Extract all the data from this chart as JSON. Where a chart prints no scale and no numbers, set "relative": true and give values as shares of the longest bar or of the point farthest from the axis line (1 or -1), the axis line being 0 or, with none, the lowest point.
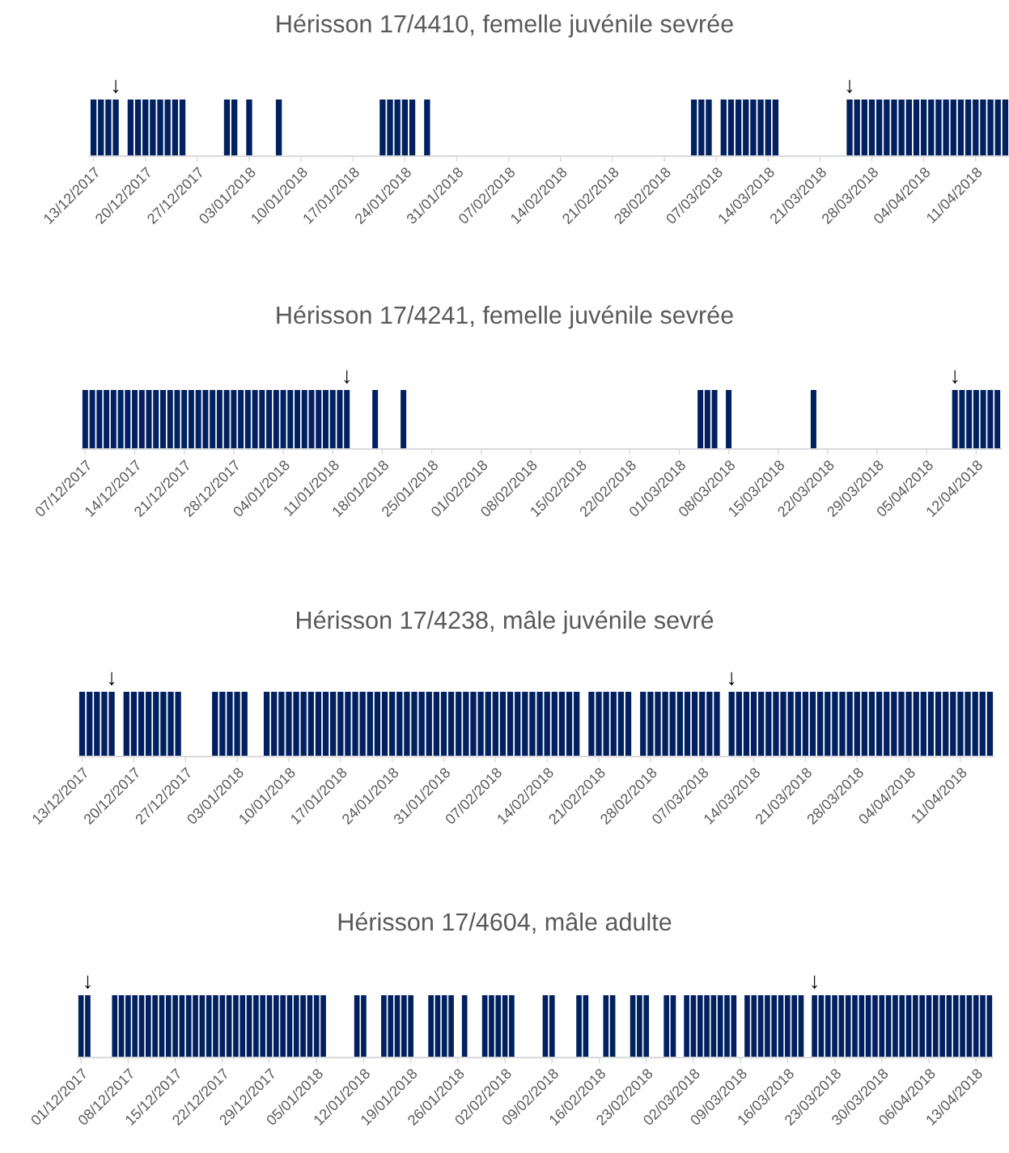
{
  "chart_data": [
    {
      "type": "bar",
      "title": "Hérisson 17/4410, femelle juvénile sevrée",
      "relative": true,
      "color": "#002060",
      "x": [
        "2017-12-13",
        "2017-12-14",
        "2017-12-15",
        "2017-12-16",
        "2017-12-18",
        "2017-12-19",
        "2017-12-20",
        "2017-12-21",
        "2017-12-22",
        "2017-12-23",
        "2017-12-24",
        "2017-12-25",
        "2017-12-31",
        "2018-01-01",
        "2018-01-03",
        "2018-01-07",
        "2018-01-21",
        "2018-01-22",
        "2018-01-23",
        "2018-01-24",
        "2018-01-25",
        "2018-01-27",
        "2018-03-04",
        "2018-03-05",
        "2018-03-06",
        "2018-03-08",
        "2018-03-09",
        "2018-03-10",
        "2018-03-11",
        "2018-03-12",
        "2018-03-13",
        "2018-03-14",
        "2018-03-15",
        "2018-03-25",
        "2018-03-26",
        "2018-03-27",
        "2018-03-28",
        "2018-03-29",
        "2018-03-30",
        "2018-03-31",
        "2018-04-01",
        "2018-04-02",
        "2018-04-03",
        "2018-04-04",
        "2018-04-05",
        "2018-04-06",
        "2018-04-07",
        "2018-04-08",
        "2018-04-09",
        "2018-04-10",
        "2018-04-11",
        "2018-04-12",
        "2018-04-13",
        "2018-04-14",
        "2018-04-15"
      ],
      "values": [
        1,
        1,
        1,
        1,
        1,
        1,
        1,
        1,
        1,
        1,
        1,
        1,
        1,
        1,
        1,
        1,
        1,
        1,
        1,
        1,
        1,
        1,
        1,
        1,
        1,
        1,
        1,
        1,
        1,
        1,
        1,
        1,
        1,
        1,
        1,
        1,
        1,
        1,
        1,
        1,
        1,
        1,
        1,
        1,
        1,
        1,
        1,
        1,
        1,
        1,
        1,
        1,
        1,
        1,
        1
      ],
      "xlim": [
        "2017-12-12T12:00",
        "2018-04-15T12:00"
      ],
      "xticks": [
        {
          "value": "2017-12-13",
          "label": "13/12/2017"
        },
        {
          "value": "2017-12-20",
          "label": "20/12/2017"
        },
        {
          "value": "2017-12-27",
          "label": "27/12/2017"
        },
        {
          "value": "2018-01-03",
          "label": "03/01/2018"
        },
        {
          "value": "2018-01-10",
          "label": "10/01/2018"
        },
        {
          "value": "2018-01-17",
          "label": "17/01/2018"
        },
        {
          "value": "2018-01-24",
          "label": "24/01/2018"
        },
        {
          "value": "2018-01-31",
          "label": "31/01/2018"
        },
        {
          "value": "2018-02-07",
          "label": "07/02/2018"
        },
        {
          "value": "2018-02-14",
          "label": "14/02/2018"
        },
        {
          "value": "2018-02-21",
          "label": "21/02/2018"
        },
        {
          "value": "2018-02-28",
          "label": "28/02/2018"
        },
        {
          "value": "2018-03-07",
          "label": "07/03/2018"
        },
        {
          "value": "2018-03-14",
          "label": "14/03/2018"
        },
        {
          "value": "2018-03-21",
          "label": "21/03/2018"
        },
        {
          "value": "2018-03-28",
          "label": "28/03/2018"
        },
        {
          "value": "2018-04-04",
          "label": "04/04/2018"
        },
        {
          "value": "2018-04-11",
          "label": "11/04/2018"
        }
      ],
      "annotations": [
        {
          "text": "↓",
          "x": "2017-12-16",
          "y": 1
        },
        {
          "text": "↓",
          "x": "2018-03-25",
          "y": 1
        }
      ]
    },
    {
      "type": "bar",
      "title": "Hérisson 17/4241, femelle juvénile sevrée",
      "relative": true,
      "color": "#002060",
      "x": [
        "2017-12-07",
        "2017-12-08",
        "2017-12-09",
        "2017-12-10",
        "2017-12-11",
        "2017-12-12",
        "2017-12-13",
        "2017-12-14",
        "2017-12-15",
        "2017-12-16",
        "2017-12-17",
        "2017-12-18",
        "2017-12-19",
        "2017-12-20",
        "2017-12-21",
        "2017-12-22",
        "2017-12-23",
        "2017-12-24",
        "2017-12-25",
        "2017-12-26",
        "2017-12-27",
        "2017-12-28",
        "2017-12-29",
        "2017-12-30",
        "2017-12-31",
        "2018-01-01",
        "2018-01-02",
        "2018-01-03",
        "2018-01-04",
        "2018-01-05",
        "2018-01-06",
        "2018-01-07",
        "2018-01-08",
        "2018-01-09",
        "2018-01-10",
        "2018-01-11",
        "2018-01-12",
        "2018-01-13",
        "2018-01-17",
        "2018-01-21",
        "2018-03-04",
        "2018-03-05",
        "2018-03-06",
        "2018-03-08",
        "2018-03-20",
        "2018-04-09",
        "2018-04-10",
        "2018-04-11",
        "2018-04-12",
        "2018-04-13",
        "2018-04-14",
        "2018-04-15"
      ],
      "values": [
        1,
        1,
        1,
        1,
        1,
        1,
        1,
        1,
        1,
        1,
        1,
        1,
        1,
        1,
        1,
        1,
        1,
        1,
        1,
        1,
        1,
        1,
        1,
        1,
        1,
        1,
        1,
        1,
        1,
        1,
        1,
        1,
        1,
        1,
        1,
        1,
        1,
        1,
        1,
        1,
        1,
        1,
        1,
        1,
        1,
        1,
        1,
        1,
        1,
        1,
        1,
        1
      ],
      "xlim": [
        "2017-12-06T12:00",
        "2018-04-15T12:00"
      ],
      "xticks": [
        {
          "value": "2017-12-07",
          "label": "07/12/2017"
        },
        {
          "value": "2017-12-14",
          "label": "14/12/2017"
        },
        {
          "value": "2017-12-21",
          "label": "21/12/2017"
        },
        {
          "value": "2017-12-28",
          "label": "28/12/2017"
        },
        {
          "value": "2018-01-04",
          "label": "04/01/2018"
        },
        {
          "value": "2018-01-11",
          "label": "11/01/2018"
        },
        {
          "value": "2018-01-18",
          "label": "18/01/2018"
        },
        {
          "value": "2018-01-25",
          "label": "25/01/2018"
        },
        {
          "value": "2018-02-01",
          "label": "01/02/2018"
        },
        {
          "value": "2018-02-08",
          "label": "08/02/2018"
        },
        {
          "value": "2018-02-15",
          "label": "15/02/2018"
        },
        {
          "value": "2018-02-22",
          "label": "22/02/2018"
        },
        {
          "value": "2018-03-01",
          "label": "01/03/2018"
        },
        {
          "value": "2018-03-08",
          "label": "08/03/2018"
        },
        {
          "value": "2018-03-15",
          "label": "15/03/2018"
        },
        {
          "value": "2018-03-22",
          "label": "22/03/2018"
        },
        {
          "value": "2018-03-29",
          "label": "29/03/2018"
        },
        {
          "value": "2018-04-05",
          "label": "05/04/2018"
        },
        {
          "value": "2018-04-12",
          "label": "12/04/2018"
        }
      ],
      "annotations": [
        {
          "text": "↓",
          "x": "2018-01-13",
          "y": 1
        },
        {
          "text": "↓",
          "x": "2018-04-09",
          "y": 1
        }
      ]
    },
    {
      "type": "bar",
      "title": "Hérisson 17/4238, mâle juvénile sevré",
      "relative": true,
      "color": "#002060",
      "x": [
        "2017-12-13",
        "2017-12-14",
        "2017-12-15",
        "2017-12-16",
        "2017-12-17",
        "2017-12-19",
        "2017-12-20",
        "2017-12-21",
        "2017-12-22",
        "2017-12-23",
        "2017-12-24",
        "2017-12-25",
        "2017-12-26",
        "2017-12-31",
        "2018-01-01",
        "2018-01-02",
        "2018-01-03",
        "2018-01-04",
        "2018-01-07",
        "2018-01-08",
        "2018-01-09",
        "2018-01-10",
        "2018-01-11",
        "2018-01-12",
        "2018-01-13",
        "2018-01-14",
        "2018-01-15",
        "2018-01-16",
        "2018-01-17",
        "2018-01-18",
        "2018-01-19",
        "2018-01-20",
        "2018-01-21",
        "2018-01-22",
        "2018-01-23",
        "2018-01-24",
        "2018-01-25",
        "2018-01-26",
        "2018-01-27",
        "2018-01-28",
        "2018-01-29",
        "2018-01-30",
        "2018-01-31",
        "2018-02-01",
        "2018-02-02",
        "2018-02-03",
        "2018-02-04",
        "2018-02-05",
        "2018-02-06",
        "2018-02-07",
        "2018-02-08",
        "2018-02-09",
        "2018-02-10",
        "2018-02-11",
        "2018-02-12",
        "2018-02-13",
        "2018-02-14",
        "2018-02-15",
        "2018-02-16",
        "2018-02-17",
        "2018-02-18",
        "2018-02-20",
        "2018-02-21",
        "2018-02-22",
        "2018-02-23",
        "2018-02-24",
        "2018-02-25",
        "2018-02-27",
        "2018-02-28",
        "2018-03-01",
        "2018-03-02",
        "2018-03-03",
        "2018-03-04",
        "2018-03-05",
        "2018-03-06",
        "2018-03-07",
        "2018-03-08",
        "2018-03-09",
        "2018-03-11",
        "2018-03-12",
        "2018-03-13",
        "2018-03-14",
        "2018-03-15",
        "2018-03-16",
        "2018-03-17",
        "2018-03-18",
        "2018-03-19",
        "2018-03-20",
        "2018-03-21",
        "2018-03-22",
        "2018-03-23",
        "2018-03-24",
        "2018-03-25",
        "2018-03-26",
        "2018-03-27",
        "2018-03-28",
        "2018-03-29",
        "2018-03-30",
        "2018-03-31",
        "2018-04-01",
        "2018-04-02",
        "2018-04-03",
        "2018-04-04",
        "2018-04-05",
        "2018-04-06",
        "2018-04-07",
        "2018-04-08",
        "2018-04-09",
        "2018-04-10",
        "2018-04-11",
        "2018-04-12",
        "2018-04-13",
        "2018-04-14",
        "2018-04-15"
      ],
      "values": [
        1,
        1,
        1,
        1,
        1,
        1,
        1,
        1,
        1,
        1,
        1,
        1,
        1,
        1,
        1,
        1,
        1,
        1,
        1,
        1,
        1,
        1,
        1,
        1,
        1,
        1,
        1,
        1,
        1,
        1,
        1,
        1,
        1,
        1,
        1,
        1,
        1,
        1,
        1,
        1,
        1,
        1,
        1,
        1,
        1,
        1,
        1,
        1,
        1,
        1,
        1,
        1,
        1,
        1,
        1,
        1,
        1,
        1,
        1,
        1,
        1,
        1,
        1,
        1,
        1,
        1,
        1,
        1,
        1,
        1,
        1,
        1,
        1,
        1,
        1,
        1,
        1,
        1,
        1,
        1,
        1,
        1,
        1,
        1,
        1,
        1,
        1,
        1,
        1,
        1,
        1,
        1,
        1,
        1,
        1,
        1,
        1,
        1,
        1,
        1,
        1,
        1,
        1,
        1,
        1,
        1,
        1,
        1,
        1,
        1,
        1,
        1,
        1,
        1
      ],
      "xlim": [
        "2017-12-12T12:00",
        "2018-04-15T12:00"
      ],
      "xticks": [
        {
          "value": "2017-12-13",
          "label": "13/12/2017"
        },
        {
          "value": "2017-12-20",
          "label": "20/12/2017"
        },
        {
          "value": "2017-12-27",
          "label": "27/12/2017"
        },
        {
          "value": "2018-01-03",
          "label": "03/01/2018"
        },
        {
          "value": "2018-01-10",
          "label": "10/01/2018"
        },
        {
          "value": "2018-01-17",
          "label": "17/01/2018"
        },
        {
          "value": "2018-01-24",
          "label": "24/01/2018"
        },
        {
          "value": "2018-01-31",
          "label": "31/01/2018"
        },
        {
          "value": "2018-02-07",
          "label": "07/02/2018"
        },
        {
          "value": "2018-02-14",
          "label": "14/02/2018"
        },
        {
          "value": "2018-02-21",
          "label": "21/02/2018"
        },
        {
          "value": "2018-02-28",
          "label": "28/02/2018"
        },
        {
          "value": "2018-03-07",
          "label": "07/03/2018"
        },
        {
          "value": "2018-03-14",
          "label": "14/03/2018"
        },
        {
          "value": "2018-03-21",
          "label": "21/03/2018"
        },
        {
          "value": "2018-03-28",
          "label": "28/03/2018"
        },
        {
          "value": "2018-04-04",
          "label": "04/04/2018"
        },
        {
          "value": "2018-04-11",
          "label": "11/04/2018"
        }
      ],
      "annotations": [
        {
          "text": "↓",
          "x": "2017-12-17",
          "y": 1
        },
        {
          "text": "↓",
          "x": "2018-03-11",
          "y": 1
        }
      ]
    },
    {
      "type": "bar",
      "title": "Hérisson 17/4604, mâle adulte",
      "relative": true,
      "color": "#002060",
      "x": [
        "2017-12-01",
        "2017-12-02",
        "2017-12-06",
        "2017-12-07",
        "2017-12-08",
        "2017-12-09",
        "2017-12-10",
        "2017-12-11",
        "2017-12-12",
        "2017-12-13",
        "2017-12-14",
        "2017-12-15",
        "2017-12-16",
        "2017-12-17",
        "2017-12-18",
        "2017-12-19",
        "2017-12-20",
        "2017-12-21",
        "2017-12-22",
        "2017-12-23",
        "2017-12-24",
        "2017-12-25",
        "2017-12-26",
        "2017-12-27",
        "2017-12-28",
        "2017-12-29",
        "2017-12-30",
        "2017-12-31",
        "2018-01-01",
        "2018-01-02",
        "2018-01-03",
        "2018-01-04",
        "2018-01-05",
        "2018-01-06",
        "2018-01-11",
        "2018-01-12",
        "2018-01-15",
        "2018-01-16",
        "2018-01-17",
        "2018-01-18",
        "2018-01-19",
        "2018-01-22",
        "2018-01-23",
        "2018-01-24",
        "2018-01-25",
        "2018-01-27",
        "2018-01-30",
        "2018-01-31",
        "2018-02-01",
        "2018-02-02",
        "2018-02-03",
        "2018-02-08",
        "2018-02-09",
        "2018-02-13",
        "2018-02-14",
        "2018-02-17",
        "2018-02-18",
        "2018-02-21",
        "2018-02-22",
        "2018-02-23",
        "2018-02-26",
        "2018-02-27",
        "2018-03-01",
        "2018-03-02",
        "2018-03-03",
        "2018-03-04",
        "2018-03-05",
        "2018-03-06",
        "2018-03-07",
        "2018-03-08",
        "2018-03-10",
        "2018-03-11",
        "2018-03-12",
        "2018-03-13",
        "2018-03-14",
        "2018-03-15",
        "2018-03-16",
        "2018-03-17",
        "2018-03-18",
        "2018-03-20",
        "2018-03-21",
        "2018-03-22",
        "2018-03-23",
        "2018-03-24",
        "2018-03-25",
        "2018-03-26",
        "2018-03-27",
        "2018-03-28",
        "2018-03-29",
        "2018-03-30",
        "2018-03-31",
        "2018-04-01",
        "2018-04-02",
        "2018-04-03",
        "2018-04-04",
        "2018-04-05",
        "2018-04-06",
        "2018-04-07",
        "2018-04-08",
        "2018-04-09",
        "2018-04-10",
        "2018-04-11",
        "2018-04-12",
        "2018-04-13",
        "2018-04-14",
        "2018-04-15"
      ],
      "values": [
        1,
        1,
        1,
        1,
        1,
        1,
        1,
        1,
        1,
        1,
        1,
        1,
        1,
        1,
        1,
        1,
        1,
        1,
        1,
        1,
        1,
        1,
        1,
        1,
        1,
        1,
        1,
        1,
        1,
        1,
        1,
        1,
        1,
        1,
        1,
        1,
        1,
        1,
        1,
        1,
        1,
        1,
        1,
        1,
        1,
        1,
        1,
        1,
        1,
        1,
        1,
        1,
        1,
        1,
        1,
        1,
        1,
        1,
        1,
        1,
        1,
        1,
        1,
        1,
        1,
        1,
        1,
        1,
        1,
        1,
        1,
        1,
        1,
        1,
        1,
        1,
        1,
        1,
        1,
        1,
        1,
        1,
        1,
        1,
        1,
        1,
        1,
        1,
        1,
        1,
        1,
        1,
        1,
        1,
        1,
        1,
        1,
        1,
        1,
        1,
        1,
        1,
        1,
        1,
        1,
        1
      ],
      "xlim": [
        "2017-11-30T12:00",
        "2018-04-15T12:00"
      ],
      "xticks": [
        {
          "value": "2017-12-01",
          "label": "01/12/2017"
        },
        {
          "value": "2017-12-08",
          "label": "08/12/2017"
        },
        {
          "value": "2017-12-15",
          "label": "15/12/2017"
        },
        {
          "value": "2017-12-22",
          "label": "22/12/2017"
        },
        {
          "value": "2017-12-29",
          "label": "29/12/2017"
        },
        {
          "value": "2018-01-05",
          "label": "05/01/2018"
        },
        {
          "value": "2018-01-12",
          "label": "12/01/2018"
        },
        {
          "value": "2018-01-19",
          "label": "19/01/2018"
        },
        {
          "value": "2018-01-26",
          "label": "26/01/2018"
        },
        {
          "value": "2018-02-02",
          "label": "02/02/2018"
        },
        {
          "value": "2018-02-09",
          "label": "09/02/2018"
        },
        {
          "value": "2018-02-16",
          "label": "16/02/2018"
        },
        {
          "value": "2018-02-23",
          "label": "23/02/2018"
        },
        {
          "value": "2018-03-02",
          "label": "02/03/2018"
        },
        {
          "value": "2018-03-09",
          "label": "09/03/2018"
        },
        {
          "value": "2018-03-16",
          "label": "16/03/2018"
        },
        {
          "value": "2018-03-23",
          "label": "23/03/2018"
        },
        {
          "value": "2018-03-30",
          "label": "30/03/2018"
        },
        {
          "value": "2018-04-06",
          "label": "06/04/2018"
        },
        {
          "value": "2018-04-13",
          "label": "13/04/2018"
        }
      ],
      "annotations": [
        {
          "text": "↓",
          "x": "2017-12-02",
          "y": 1
        },
        {
          "text": "↓",
          "x": "2018-03-20",
          "y": 1
        }
      ]
    }
  ]
}
